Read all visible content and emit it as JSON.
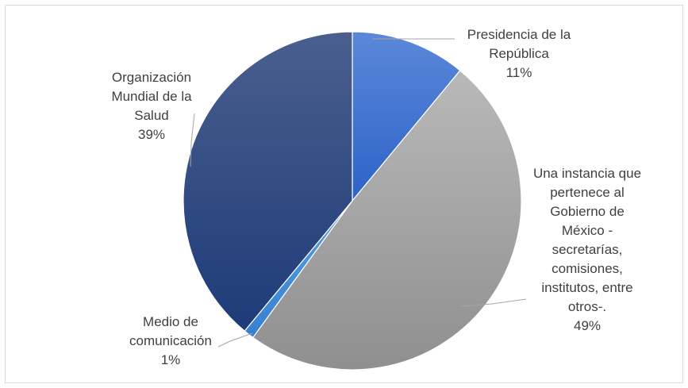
{
  "chart_data": {
    "type": "pie",
    "title": "",
    "slices": [
      {
        "label": "Presidencia de la República",
        "label_lines": [
          "Presidencia de la",
          "República"
        ],
        "value": 11,
        "value_text": "11%",
        "color": "#4a7bd6"
      },
      {
        "label": "Una instancia que pertenece al Gobierno de México -secretarías, comisiones, institutos, entre otros-.",
        "label_lines": [
          "Una instancia que",
          "pertenece al",
          "Gobierno de",
          "México -",
          "secretarías,",
          "comisiones,",
          "institutos, entre",
          "otros-."
        ],
        "value": 49,
        "value_text": "49%",
        "color": "#a5a5a5"
      },
      {
        "label": "Medio de comunicación",
        "label_lines": [
          "Medio de",
          "comunicación"
        ],
        "value": 1,
        "value_text": "1%",
        "color": "#3f8fdc"
      },
      {
        "label": "Organización Mundial de la Salud",
        "label_lines": [
          "Organización",
          "Mundial de la",
          "Salud"
        ],
        "value": 39,
        "value_text": "39%",
        "color": "#2e4a86"
      }
    ],
    "legend": "none",
    "start_angle_deg": 0,
    "direction": "clockwise"
  }
}
